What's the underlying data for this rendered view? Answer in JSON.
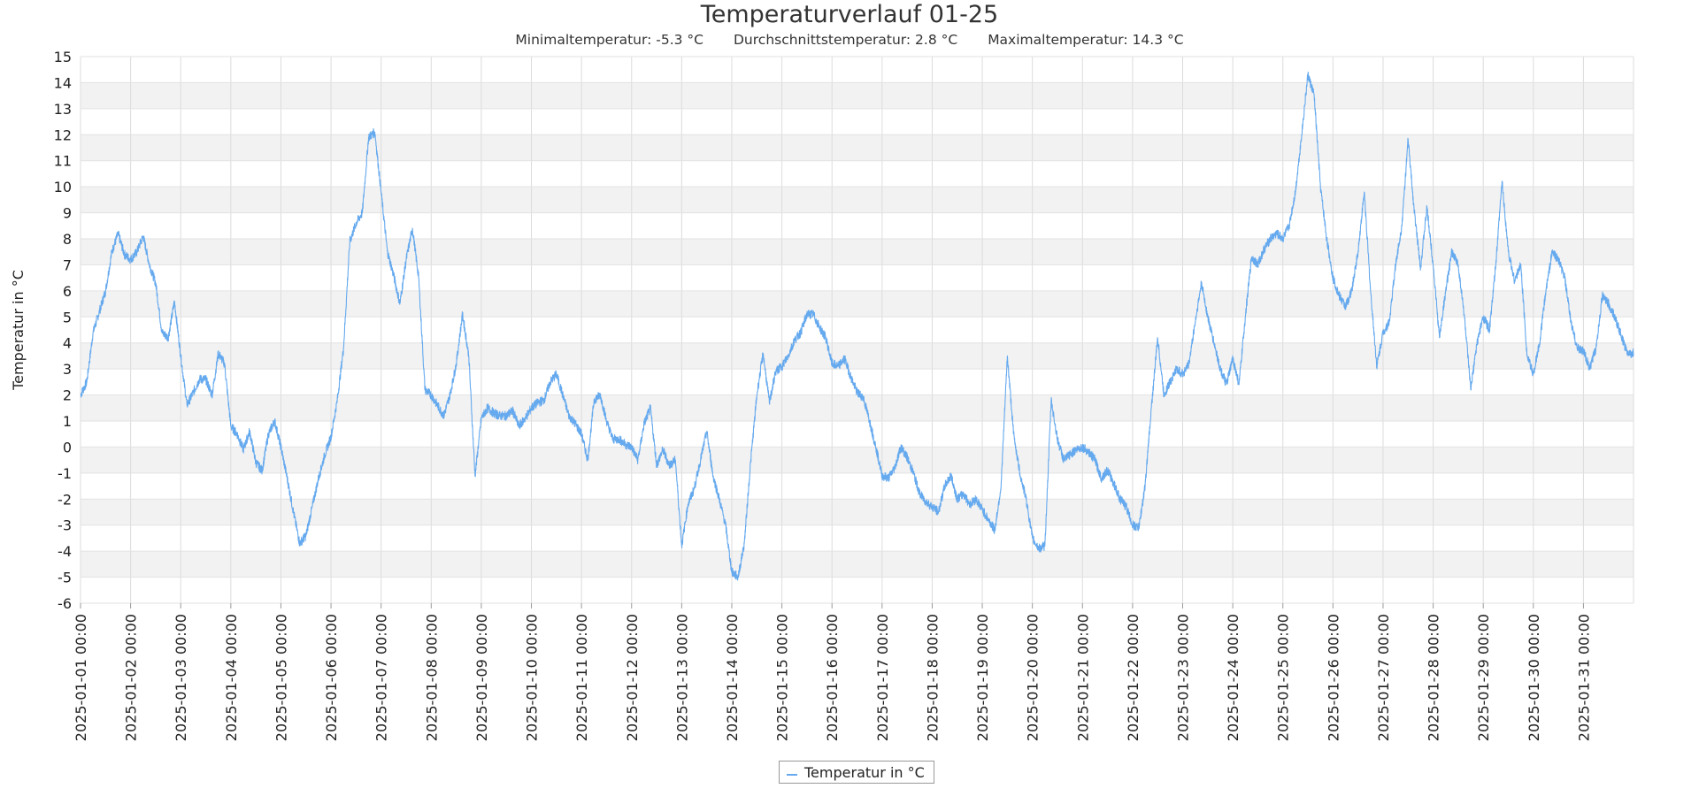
{
  "chart_data": {
    "type": "line",
    "title": "Temperaturverlauf 01-25",
    "subtitle": {
      "min": "Minimaltemperatur: -5.3 °C",
      "avg": "Durchschnittstemperatur: 2.8 °C",
      "max": "Maximaltemperatur: 14.3 °C"
    },
    "ylabel": "Temperatur in °C",
    "ylim": [
      -6,
      15
    ],
    "yticks": [
      -6,
      -5,
      -4,
      -3,
      -2,
      -1,
      0,
      1,
      2,
      3,
      4,
      5,
      6,
      7,
      8,
      9,
      10,
      11,
      12,
      13,
      14,
      15
    ],
    "xlim": [
      "2025-01-01 00:00",
      "2025-01-31 23:59"
    ],
    "xticks": [
      "2025-01-01 00:00",
      "2025-01-02 00:00",
      "2025-01-03 00:00",
      "2025-01-04 00:00",
      "2025-01-05 00:00",
      "2025-01-06 00:00",
      "2025-01-07 00:00",
      "2025-01-08 00:00",
      "2025-01-09 00:00",
      "2025-01-10 00:00",
      "2025-01-11 00:00",
      "2025-01-12 00:00",
      "2025-01-13 00:00",
      "2025-01-14 00:00",
      "2025-01-15 00:00",
      "2025-01-16 00:00",
      "2025-01-17 00:00",
      "2025-01-18 00:00",
      "2025-01-19 00:00",
      "2025-01-20 00:00",
      "2025-01-21 00:00",
      "2025-01-22 00:00",
      "2025-01-23 00:00",
      "2025-01-24 00:00",
      "2025-01-25 00:00",
      "2025-01-26 00:00",
      "2025-01-27 00:00",
      "2025-01-28 00:00",
      "2025-01-29 00:00",
      "2025-01-30 00:00",
      "2025-01-31 00:00"
    ],
    "grid": true,
    "legend_position": "bottom-center",
    "series": [
      {
        "name": "Temperatur in °C",
        "color": "#65a9ee",
        "points": [
          [
            "2025-01-01 00:00",
            2.0
          ],
          [
            "2025-01-01 03:00",
            2.5
          ],
          [
            "2025-01-01 06:00",
            4.4
          ],
          [
            "2025-01-01 09:00",
            5.2
          ],
          [
            "2025-01-01 12:00",
            6.0
          ],
          [
            "2025-01-01 15:00",
            7.5
          ],
          [
            "2025-01-01 18:00",
            8.2
          ],
          [
            "2025-01-01 21:00",
            7.4
          ],
          [
            "2025-01-02 00:00",
            7.2
          ],
          [
            "2025-01-02 03:00",
            7.5
          ],
          [
            "2025-01-02 06:00",
            8.1
          ],
          [
            "2025-01-02 09:00",
            7.0
          ],
          [
            "2025-01-02 12:00",
            6.3
          ],
          [
            "2025-01-02 15:00",
            4.4
          ],
          [
            "2025-01-02 18:00",
            4.2
          ],
          [
            "2025-01-02 21:00",
            5.6
          ],
          [
            "2025-01-03 00:00",
            3.5
          ],
          [
            "2025-01-03 03:00",
            1.6
          ],
          [
            "2025-01-03 06:00",
            2.1
          ],
          [
            "2025-01-03 09:00",
            2.6
          ],
          [
            "2025-01-03 12:00",
            2.6
          ],
          [
            "2025-01-03 15:00",
            2.0
          ],
          [
            "2025-01-03 18:00",
            3.6
          ],
          [
            "2025-01-03 21:00",
            3.2
          ],
          [
            "2025-01-04 00:00",
            0.8
          ],
          [
            "2025-01-04 03:00",
            0.5
          ],
          [
            "2025-01-04 06:00",
            -0.1
          ],
          [
            "2025-01-04 09:00",
            0.6
          ],
          [
            "2025-01-04 12:00",
            -0.6
          ],
          [
            "2025-01-04 15:00",
            -0.9
          ],
          [
            "2025-01-04 18:00",
            0.5
          ],
          [
            "2025-01-04 21:00",
            1.0
          ],
          [
            "2025-01-05 00:00",
            0.0
          ],
          [
            "2025-01-05 03:00",
            -1.2
          ],
          [
            "2025-01-05 06:00",
            -2.5
          ],
          [
            "2025-01-05 09:00",
            -3.7
          ],
          [
            "2025-01-05 12:00",
            -3.4
          ],
          [
            "2025-01-05 15:00",
            -2.3
          ],
          [
            "2025-01-05 18:00",
            -1.2
          ],
          [
            "2025-01-05 21:00",
            -0.3
          ],
          [
            "2025-01-06 00:00",
            0.4
          ],
          [
            "2025-01-06 03:00",
            1.8
          ],
          [
            "2025-01-06 06:00",
            3.8
          ],
          [
            "2025-01-06 09:00",
            7.9
          ],
          [
            "2025-01-06 12:00",
            8.6
          ],
          [
            "2025-01-06 15:00",
            9.0
          ],
          [
            "2025-01-06 18:00",
            11.9
          ],
          [
            "2025-01-06 21:00",
            12.1
          ],
          [
            "2025-01-07 00:00",
            9.8
          ],
          [
            "2025-01-07 03:00",
            7.5
          ],
          [
            "2025-01-07 06:00",
            6.6
          ],
          [
            "2025-01-07 09:00",
            5.5
          ],
          [
            "2025-01-07 12:00",
            7.2
          ],
          [
            "2025-01-07 15:00",
            8.4
          ],
          [
            "2025-01-07 18:00",
            6.5
          ],
          [
            "2025-01-07 21:00",
            2.2
          ],
          [
            "2025-01-08 00:00",
            2.0
          ],
          [
            "2025-01-08 03:00",
            1.6
          ],
          [
            "2025-01-08 06:00",
            1.2
          ],
          [
            "2025-01-08 09:00",
            2.0
          ],
          [
            "2025-01-08 12:00",
            3.2
          ],
          [
            "2025-01-08 15:00",
            5.1
          ],
          [
            "2025-01-08 18:00",
            3.5
          ],
          [
            "2025-01-08 21:00",
            -1.1
          ],
          [
            "2025-01-09 00:00",
            1.1
          ],
          [
            "2025-01-09 03:00",
            1.5
          ],
          [
            "2025-01-09 06:00",
            1.3
          ],
          [
            "2025-01-09 09:00",
            1.2
          ],
          [
            "2025-01-09 12:00",
            1.2
          ],
          [
            "2025-01-09 15:00",
            1.4
          ],
          [
            "2025-01-09 18:00",
            0.8
          ],
          [
            "2025-01-09 21:00",
            1.1
          ],
          [
            "2025-01-10 00:00",
            1.5
          ],
          [
            "2025-01-10 03:00",
            1.7
          ],
          [
            "2025-01-10 06:00",
            1.8
          ],
          [
            "2025-01-10 09:00",
            2.5
          ],
          [
            "2025-01-10 12:00",
            2.8
          ],
          [
            "2025-01-10 15:00",
            2.0
          ],
          [
            "2025-01-10 18:00",
            1.2
          ],
          [
            "2025-01-10 21:00",
            0.9
          ],
          [
            "2025-01-11 00:00",
            0.5
          ],
          [
            "2025-01-11 03:00",
            -0.5
          ],
          [
            "2025-01-11 06:00",
            1.8
          ],
          [
            "2025-01-11 09:00",
            2.0
          ],
          [
            "2025-01-11 12:00",
            1.0
          ],
          [
            "2025-01-11 15:00",
            0.3
          ],
          [
            "2025-01-11 18:00",
            0.3
          ],
          [
            "2025-01-11 21:00",
            0.1
          ],
          [
            "2025-01-12 00:00",
            0.0
          ],
          [
            "2025-01-12 03:00",
            -0.5
          ],
          [
            "2025-01-12 06:00",
            0.9
          ],
          [
            "2025-01-12 09:00",
            1.5
          ],
          [
            "2025-01-12 12:00",
            -0.7
          ],
          [
            "2025-01-12 15:00",
            -0.1
          ],
          [
            "2025-01-12 18:00",
            -0.7
          ],
          [
            "2025-01-12 21:00",
            -0.5
          ],
          [
            "2025-01-13 00:00",
            -3.8
          ],
          [
            "2025-01-13 03:00",
            -2.2
          ],
          [
            "2025-01-13 06:00",
            -1.6
          ],
          [
            "2025-01-13 09:00",
            -0.5
          ],
          [
            "2025-01-13 12:00",
            0.6
          ],
          [
            "2025-01-13 15:00",
            -1.1
          ],
          [
            "2025-01-13 18:00",
            -2.0
          ],
          [
            "2025-01-13 21:00",
            -3.0
          ],
          [
            "2025-01-14 00:00",
            -4.8
          ],
          [
            "2025-01-14 03:00",
            -5.0
          ],
          [
            "2025-01-14 06:00",
            -3.7
          ],
          [
            "2025-01-14 09:00",
            -0.6
          ],
          [
            "2025-01-14 12:00",
            2.0
          ],
          [
            "2025-01-14 15:00",
            3.6
          ],
          [
            "2025-01-14 18:00",
            1.7
          ],
          [
            "2025-01-14 21:00",
            2.9
          ],
          [
            "2025-01-15 00:00",
            3.1
          ],
          [
            "2025-01-15 03:00",
            3.5
          ],
          [
            "2025-01-15 06:00",
            4.1
          ],
          [
            "2025-01-15 09:00",
            4.4
          ],
          [
            "2025-01-15 12:00",
            5.1
          ],
          [
            "2025-01-15 15:00",
            5.1
          ],
          [
            "2025-01-15 18:00",
            4.6
          ],
          [
            "2025-01-15 21:00",
            4.2
          ],
          [
            "2025-01-16 00:00",
            3.2
          ],
          [
            "2025-01-16 03:00",
            3.1
          ],
          [
            "2025-01-16 06:00",
            3.4
          ],
          [
            "2025-01-16 09:00",
            2.7
          ],
          [
            "2025-01-16 12:00",
            2.1
          ],
          [
            "2025-01-16 15:00",
            1.9
          ],
          [
            "2025-01-16 18:00",
            1.0
          ],
          [
            "2025-01-16 21:00",
            0.0
          ],
          [
            "2025-01-17 00:00",
            -1.1
          ],
          [
            "2025-01-17 03:00",
            -1.2
          ],
          [
            "2025-01-17 06:00",
            -0.8
          ],
          [
            "2025-01-17 09:00",
            0.0
          ],
          [
            "2025-01-17 12:00",
            -0.4
          ],
          [
            "2025-01-17 15:00",
            -1.0
          ],
          [
            "2025-01-17 18:00",
            -1.8
          ],
          [
            "2025-01-17 21:00",
            -2.1
          ],
          [
            "2025-01-18 00:00",
            -2.3
          ],
          [
            "2025-01-18 03:00",
            -2.5
          ],
          [
            "2025-01-18 06:00",
            -1.5
          ],
          [
            "2025-01-18 09:00",
            -1.1
          ],
          [
            "2025-01-18 12:00",
            -2.0
          ],
          [
            "2025-01-18 15:00",
            -1.8
          ],
          [
            "2025-01-18 18:00",
            -2.2
          ],
          [
            "2025-01-18 21:00",
            -2.0
          ],
          [
            "2025-01-19 00:00",
            -2.4
          ],
          [
            "2025-01-19 03:00",
            -2.8
          ],
          [
            "2025-01-19 06:00",
            -3.2
          ],
          [
            "2025-01-19 09:00",
            -1.5
          ],
          [
            "2025-01-19 12:00",
            3.5
          ],
          [
            "2025-01-19 15:00",
            0.5
          ],
          [
            "2025-01-19 18:00",
            -1.0
          ],
          [
            "2025-01-19 21:00",
            -2.0
          ],
          [
            "2025-01-20 00:00",
            -3.5
          ],
          [
            "2025-01-20 03:00",
            -3.9
          ],
          [
            "2025-01-20 06:00",
            -3.8
          ],
          [
            "2025-01-20 09:00",
            1.8
          ],
          [
            "2025-01-20 12:00",
            0.3
          ],
          [
            "2025-01-20 15:00",
            -0.5
          ],
          [
            "2025-01-20 18:00",
            -0.3
          ],
          [
            "2025-01-20 21:00",
            -0.1
          ],
          [
            "2025-01-21 00:00",
            0.0
          ],
          [
            "2025-01-21 03:00",
            -0.2
          ],
          [
            "2025-01-21 06:00",
            -0.5
          ],
          [
            "2025-01-21 09:00",
            -1.2
          ],
          [
            "2025-01-21 12:00",
            -0.9
          ],
          [
            "2025-01-21 15:00",
            -1.4
          ],
          [
            "2025-01-21 18:00",
            -2.0
          ],
          [
            "2025-01-21 21:00",
            -2.3
          ],
          [
            "2025-01-22 00:00",
            -3.0
          ],
          [
            "2025-01-22 03:00",
            -3.1
          ],
          [
            "2025-01-22 06:00",
            -1.5
          ],
          [
            "2025-01-22 09:00",
            1.5
          ],
          [
            "2025-01-22 12:00",
            4.2
          ],
          [
            "2025-01-22 15:00",
            2.0
          ],
          [
            "2025-01-22 18:00",
            2.5
          ],
          [
            "2025-01-22 21:00",
            3.0
          ],
          [
            "2025-01-23 00:00",
            2.8
          ],
          [
            "2025-01-23 03:00",
            3.2
          ],
          [
            "2025-01-23 06:00",
            4.8
          ],
          [
            "2025-01-23 09:00",
            6.3
          ],
          [
            "2025-01-23 12:00",
            5.0
          ],
          [
            "2025-01-23 15:00",
            4.0
          ],
          [
            "2025-01-23 18:00",
            3.0
          ],
          [
            "2025-01-23 21:00",
            2.4
          ],
          [
            "2025-01-24 00:00",
            3.4
          ],
          [
            "2025-01-24 03:00",
            2.4
          ],
          [
            "2025-01-24 06:00",
            5.0
          ],
          [
            "2025-01-24 09:00",
            7.3
          ],
          [
            "2025-01-24 12:00",
            7.0
          ],
          [
            "2025-01-24 15:00",
            7.6
          ],
          [
            "2025-01-24 18:00",
            8.0
          ],
          [
            "2025-01-24 21:00",
            8.2
          ],
          [
            "2025-01-25 00:00",
            8.0
          ],
          [
            "2025-01-25 03:00",
            8.5
          ],
          [
            "2025-01-25 06:00",
            9.8
          ],
          [
            "2025-01-25 09:00",
            12.0
          ],
          [
            "2025-01-25 12:00",
            14.3
          ],
          [
            "2025-01-25 15:00",
            13.5
          ],
          [
            "2025-01-25 18:00",
            10.0
          ],
          [
            "2025-01-25 21:00",
            8.0
          ],
          [
            "2025-01-26 00:00",
            6.5
          ],
          [
            "2025-01-26 03:00",
            5.8
          ],
          [
            "2025-01-26 06:00",
            5.4
          ],
          [
            "2025-01-26 09:00",
            6.0
          ],
          [
            "2025-01-26 12:00",
            7.5
          ],
          [
            "2025-01-26 15:00",
            9.8
          ],
          [
            "2025-01-26 18:00",
            6.0
          ],
          [
            "2025-01-26 21:00",
            3.1
          ],
          [
            "2025-01-27 00:00",
            4.4
          ],
          [
            "2025-01-27 03:00",
            4.8
          ],
          [
            "2025-01-27 06:00",
            7.0
          ],
          [
            "2025-01-27 09:00",
            8.5
          ],
          [
            "2025-01-27 12:00",
            11.8
          ],
          [
            "2025-01-27 15:00",
            9.0
          ],
          [
            "2025-01-27 18:00",
            6.9
          ],
          [
            "2025-01-27 21:00",
            9.2
          ],
          [
            "2025-01-28 00:00",
            7.0
          ],
          [
            "2025-01-28 03:00",
            4.2
          ],
          [
            "2025-01-28 06:00",
            6.0
          ],
          [
            "2025-01-28 09:00",
            7.5
          ],
          [
            "2025-01-28 12:00",
            7.0
          ],
          [
            "2025-01-28 15:00",
            5.0
          ],
          [
            "2025-01-28 18:00",
            2.2
          ],
          [
            "2025-01-28 21:00",
            4.0
          ],
          [
            "2025-01-29 00:00",
            5.0
          ],
          [
            "2025-01-29 03:00",
            4.5
          ],
          [
            "2025-01-29 06:00",
            7.0
          ],
          [
            "2025-01-29 09:00",
            10.2
          ],
          [
            "2025-01-29 12:00",
            7.5
          ],
          [
            "2025-01-29 15:00",
            6.4
          ],
          [
            "2025-01-29 18:00",
            7.0
          ],
          [
            "2025-01-29 21:00",
            3.5
          ],
          [
            "2025-01-30 00:00",
            2.8
          ],
          [
            "2025-01-30 03:00",
            4.0
          ],
          [
            "2025-01-30 06:00",
            6.0
          ],
          [
            "2025-01-30 09:00",
            7.5
          ],
          [
            "2025-01-30 12:00",
            7.2
          ],
          [
            "2025-01-30 15:00",
            6.5
          ],
          [
            "2025-01-30 18:00",
            4.8
          ],
          [
            "2025-01-30 21:00",
            3.8
          ],
          [
            "2025-01-31 00:00",
            3.7
          ],
          [
            "2025-01-31 03:00",
            3.0
          ],
          [
            "2025-01-31 06:00",
            3.8
          ],
          [
            "2025-01-31 09:00",
            5.8
          ],
          [
            "2025-01-31 12:00",
            5.5
          ],
          [
            "2025-01-31 15:00",
            5.0
          ],
          [
            "2025-01-31 18:00",
            4.3
          ],
          [
            "2025-01-31 21:00",
            3.6
          ],
          [
            "2025-01-31 23:59",
            3.6
          ]
        ]
      }
    ]
  }
}
